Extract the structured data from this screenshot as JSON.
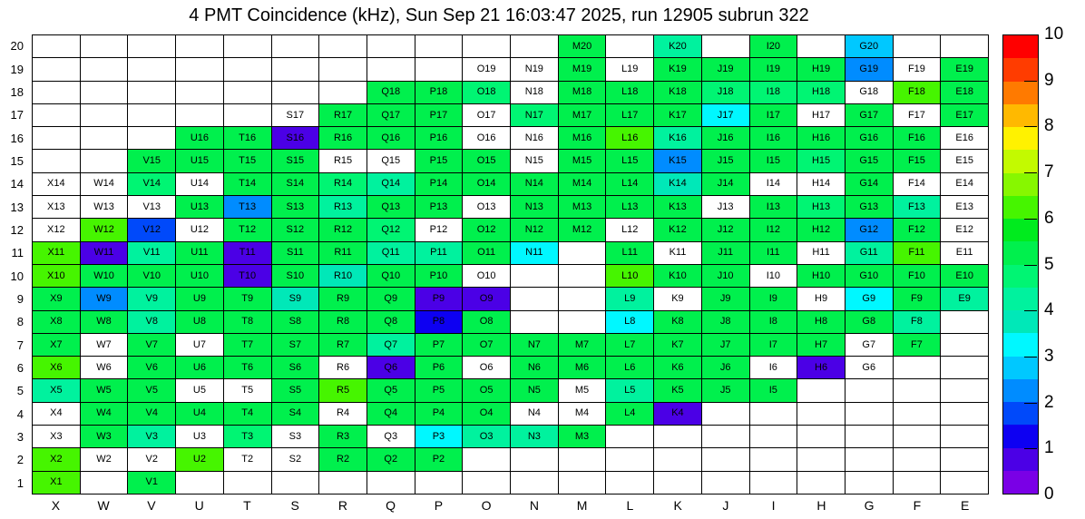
{
  "title": "4 PMT Coincidence (kHz), Sun Sep 21 16:03:47 2025, run 12905 subrun 322",
  "chart_data": {
    "type": "heatmap",
    "title": "4 PMT Coincidence (kHz), Sun Sep 21 16:03:47 2025, run 12905 subrun 322",
    "x_categories": [
      "X",
      "W",
      "V",
      "U",
      "T",
      "S",
      "R",
      "Q",
      "P",
      "O",
      "N",
      "M",
      "L",
      "K",
      "J",
      "I",
      "H",
      "G",
      "F",
      "E"
    ],
    "y_categories": [
      1,
      2,
      3,
      4,
      5,
      6,
      7,
      8,
      9,
      10,
      11,
      12,
      13,
      14,
      15,
      16,
      17,
      18,
      19,
      20
    ],
    "zlim": [
      0,
      10
    ],
    "colorbar_ticks": [
      0,
      1,
      2,
      3,
      4,
      5,
      6,
      7,
      8,
      9,
      10
    ],
    "legend_position": "right",
    "grid": true,
    "empty_marker": "e",
    "palette": [
      "#7A00E6",
      "#4B00E6",
      "#0D00F2",
      "#0049FA",
      "#008CFF",
      "#00C8FF",
      "#00F8FF",
      "#00E8B8",
      "#00F29E",
      "#00F573",
      "#00F04D",
      "#00EB1E",
      "#46F500",
      "#87F700",
      "#C3FA00",
      "#FFF200",
      "#FFB900",
      "#FF7A00",
      "#FF3C00",
      "#FF0000"
    ],
    "palette_band_width": 0.5,
    "rows": {
      "20": [
        null,
        null,
        null,
        null,
        null,
        null,
        null,
        null,
        null,
        null,
        null,
        5.2,
        null,
        4.2,
        null,
        5.2,
        null,
        2.7,
        null,
        null
      ],
      "19": [
        null,
        null,
        null,
        null,
        null,
        null,
        null,
        null,
        null,
        "e",
        "e",
        5.2,
        "e",
        5.2,
        5.2,
        5.2,
        5.2,
        2.2,
        "e",
        5.2
      ],
      "18": [
        null,
        null,
        null,
        null,
        null,
        null,
        null,
        5.2,
        5.2,
        4.6,
        "e",
        5.2,
        5.2,
        5.2,
        4.6,
        4.6,
        4.6,
        "e",
        6.2,
        5.2
      ],
      "17": [
        null,
        null,
        null,
        null,
        null,
        "e",
        5.2,
        5.2,
        5.2,
        "e",
        4.6,
        5.2,
        5.2,
        5.2,
        3.2,
        5.2,
        "e",
        5.2,
        "e",
        5.2
      ],
      "16": [
        null,
        null,
        null,
        5.2,
        5.2,
        0.7,
        5.2,
        5.2,
        5.2,
        "e",
        "e",
        5.2,
        6.2,
        4.2,
        5.2,
        5.2,
        5.2,
        5.2,
        5.2,
        "e"
      ],
      "15": [
        null,
        null,
        5.2,
        5.2,
        5.2,
        5.2,
        "e",
        "e",
        5.2,
        5.2,
        "e",
        5.2,
        5.2,
        2.2,
        5.2,
        5.2,
        4.6,
        5.2,
        5.2,
        "e"
      ],
      "14": [
        "e",
        "e",
        4.6,
        "e",
        5.2,
        5.2,
        4.6,
        4.3,
        5.2,
        5.2,
        5.2,
        5.2,
        5.2,
        3.7,
        5.2,
        "e",
        "e",
        5.2,
        "e",
        "e"
      ],
      "13": [
        "e",
        "e",
        "e",
        5.2,
        2.2,
        5.2,
        4.3,
        5.2,
        5.2,
        "e",
        5.2,
        5.2,
        5.2,
        5.2,
        "e",
        5.2,
        4.6,
        5.2,
        4.3,
        "e"
      ],
      "12": [
        "e",
        6.2,
        1.7,
        "e",
        5.2,
        5.2,
        5.2,
        4.6,
        "e",
        5.2,
        5.2,
        5.2,
        "e",
        5.2,
        5.2,
        5.2,
        5.2,
        2.2,
        5.2,
        "e"
      ],
      "11": [
        6.2,
        0.7,
        4.3,
        5.2,
        0.7,
        5.2,
        5.2,
        4.3,
        4.3,
        5.2,
        3.3,
        null,
        5.2,
        "e",
        5.2,
        5.2,
        "e",
        4.3,
        6.2,
        "e"
      ],
      "10": [
        6.2,
        5.2,
        5.2,
        5.2,
        0.7,
        5.2,
        3.7,
        5.2,
        5.2,
        "e",
        null,
        null,
        6.2,
        5.2,
        5.2,
        "e",
        5.2,
        5.2,
        5.2,
        5.2
      ],
      "9": [
        5.2,
        2.2,
        4.3,
        5.2,
        5.2,
        3.6,
        5.2,
        5.2,
        0.7,
        0.7,
        null,
        null,
        4.3,
        "e",
        5.2,
        5.2,
        "e",
        3.3,
        5.2,
        4.3
      ],
      "8": [
        5.2,
        5.2,
        4.3,
        5.2,
        5.2,
        5.2,
        5.2,
        5.2,
        1.2,
        5.2,
        null,
        null,
        3.4,
        5.2,
        5.2,
        5.2,
        5.2,
        5.2,
        4.3,
        null
      ],
      "7": [
        5.2,
        "e",
        5.2,
        "e",
        5.2,
        5.2,
        5.2,
        4.3,
        5.2,
        5.2,
        5.2,
        5.2,
        5.2,
        5.2,
        5.2,
        5.2,
        5.2,
        "e",
        5.2,
        null
      ],
      "6": [
        6.2,
        "e",
        5.2,
        5.2,
        5.2,
        5.2,
        "e",
        0.7,
        5.2,
        "e",
        5.2,
        5.2,
        5.2,
        5.2,
        5.2,
        "e",
        0.7,
        "e",
        null,
        null
      ],
      "5": [
        4.3,
        5.2,
        5.2,
        "e",
        "e",
        5.2,
        6.2,
        5.2,
        5.2,
        5.2,
        5.2,
        "e",
        4.3,
        5.2,
        5.2,
        5.2,
        null,
        null,
        null,
        null
      ],
      "4": [
        "e",
        5.2,
        5.2,
        5.2,
        5.2,
        5.2,
        "e",
        5.2,
        5.2,
        5.2,
        "e",
        "e",
        5.2,
        0.7,
        null,
        null,
        null,
        null,
        null,
        null
      ],
      "3": [
        "e",
        5.2,
        4.3,
        "e",
        4.6,
        "e",
        5.2,
        "e",
        3.3,
        4.3,
        4.3,
        5.2,
        null,
        null,
        null,
        null,
        null,
        null,
        null,
        null
      ],
      "2": [
        6.2,
        "e",
        "e",
        6.2,
        "e",
        "e",
        5.2,
        5.2,
        5.2,
        null,
        null,
        null,
        null,
        null,
        null,
        null,
        null,
        null,
        null,
        null
      ],
      "1": [
        6.2,
        null,
        5.2,
        null,
        null,
        null,
        null,
        null,
        null,
        null,
        null,
        null,
        null,
        null,
        null,
        null,
        null,
        null,
        null,
        null
      ]
    }
  }
}
